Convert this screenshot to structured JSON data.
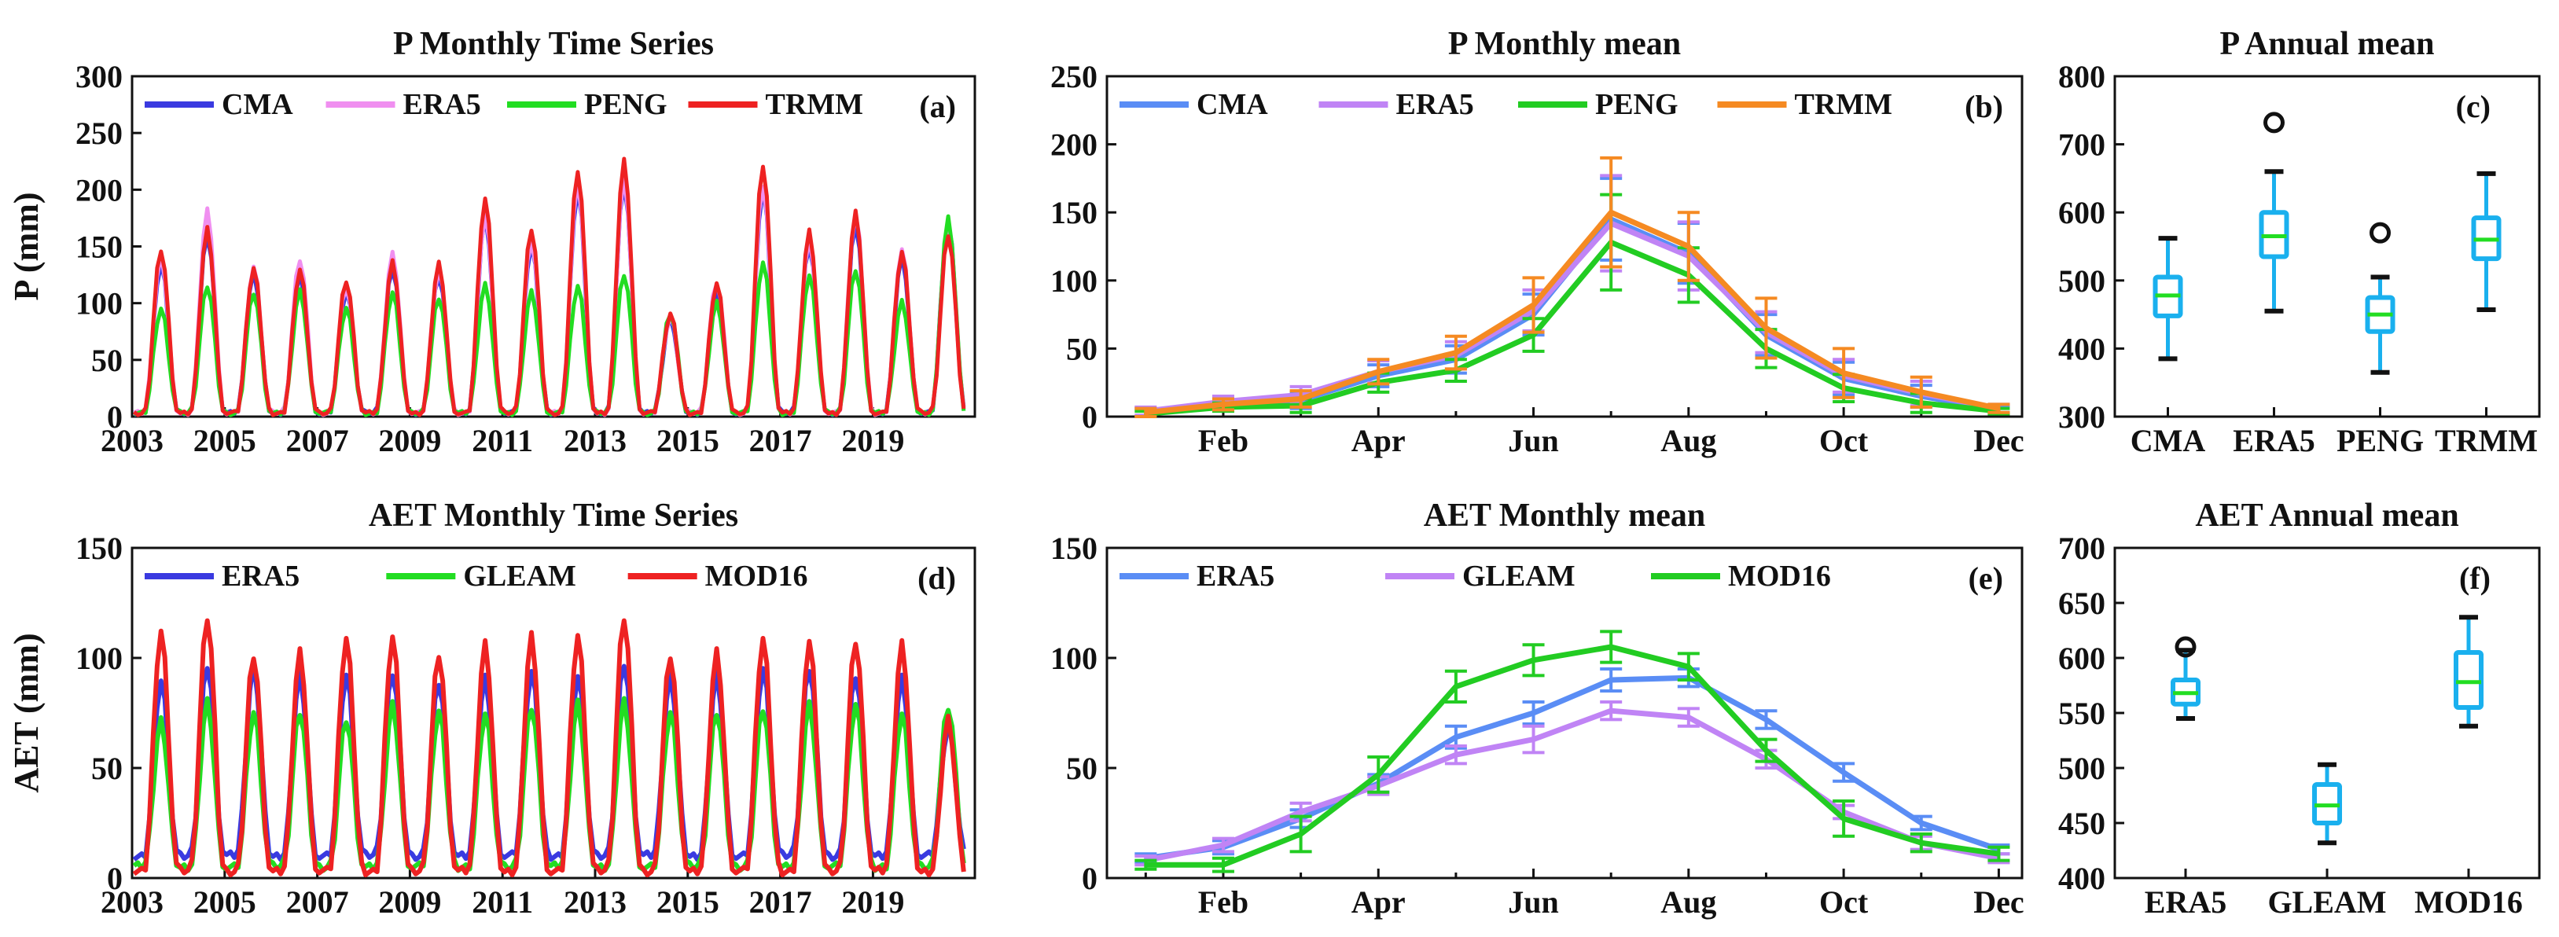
{
  "colors": {
    "CMA": "#3a3ae0",
    "ERA5": "#f08ff0",
    "PENG": "#22dd22",
    "TRMM": "#ee2222",
    "mean_CMA": "#5a8df5",
    "mean_ERA5": "#c084f5",
    "mean_PENG": "#22cc22",
    "mean_TRMM": "#f58a22",
    "aet_ERA5": "#3a3ae0",
    "aet_GLEAM": "#22dd22",
    "aet_MOD16": "#ee2222",
    "aetm_ERA5": "#5a8df5",
    "aetm_GLEAM": "#c084f5",
    "aetm_MOD16": "#22cc22",
    "box": "#1ab0ee",
    "median": "#22dd22",
    "whisker": "#111111"
  },
  "chart_data": [
    {
      "id": "a",
      "type": "line",
      "title": "P Monthly Time Series",
      "panel_label": "(a)",
      "ylabel": "P (mm)",
      "xlabel": "",
      "xlim": [
        2003,
        2021.2
      ],
      "ylim": [
        0,
        300
      ],
      "xticks": [
        "2003",
        "2005",
        "2007",
        "2009",
        "2011",
        "2013",
        "2015",
        "2017",
        "2019"
      ],
      "yticks": [
        "0",
        "50",
        "100",
        "150",
        "200",
        "250",
        "300"
      ],
      "legend": [
        "CMA",
        "ERA5",
        "PENG",
        "TRMM"
      ],
      "seasonal_peaks_by_year": {
        "x": [
          2003,
          2004,
          2005,
          2006,
          2007,
          2008,
          2009,
          2010,
          2011,
          2012,
          2013,
          2014,
          2015,
          2016,
          2017,
          2018,
          2019,
          2020
        ],
        "CMA": [
          135,
          160,
          125,
          125,
          110,
          130,
          125,
          175,
          150,
          200,
          205,
          85,
          110,
          200,
          150,
          170,
          140,
          170
        ],
        "ERA5": [
          140,
          182,
          132,
          138,
          115,
          143,
          128,
          178,
          155,
          205,
          210,
          88,
          118,
          205,
          155,
          178,
          148,
          170
        ],
        "PENG": [
          95,
          115,
          110,
          110,
          95,
          110,
          105,
          115,
          110,
          115,
          125,
          92,
          100,
          135,
          125,
          130,
          100,
          175
        ],
        "TRMM": [
          148,
          165,
          130,
          130,
          120,
          135,
          135,
          192,
          165,
          218,
          225,
          90,
          118,
          222,
          162,
          180,
          145,
          160
        ]
      }
    },
    {
      "id": "b",
      "type": "line",
      "title": "P Monthly mean",
      "panel_label": "(b)",
      "xlim": [
        0.5,
        12.3
      ],
      "ylim": [
        0,
        250
      ],
      "months": [
        1,
        2,
        3,
        4,
        5,
        6,
        7,
        8,
        9,
        10,
        11,
        12
      ],
      "xticks": [
        "Feb",
        "Apr",
        "Jun",
        "Aug",
        "Oct",
        "Dec"
      ],
      "yticks": [
        "0",
        "50",
        "100",
        "150",
        "200",
        "250"
      ],
      "legend": [
        "CMA",
        "ERA5",
        "PENG",
        "TRMM"
      ],
      "series": [
        {
          "name": "CMA",
          "values": [
            3,
            9,
            12,
            30,
            42,
            75,
            145,
            120,
            60,
            28,
            15,
            5
          ],
          "err": [
            3,
            4,
            6,
            8,
            10,
            15,
            30,
            22,
            15,
            12,
            8,
            3
          ]
        },
        {
          "name": "ERA5",
          "values": [
            4,
            11,
            16,
            33,
            45,
            78,
            142,
            118,
            62,
            30,
            17,
            6
          ],
          "err": [
            3,
            4,
            6,
            8,
            10,
            15,
            35,
            25,
            15,
            12,
            9,
            3
          ]
        },
        {
          "name": "PENG",
          "values": [
            2,
            7,
            8,
            25,
            34,
            60,
            128,
            104,
            50,
            21,
            10,
            4
          ],
          "err": [
            2,
            3,
            5,
            7,
            8,
            12,
            35,
            20,
            14,
            10,
            7,
            2
          ]
        },
        {
          "name": "TRMM",
          "values": [
            3,
            9,
            13,
            33,
            47,
            82,
            150,
            125,
            65,
            32,
            18,
            6
          ],
          "err": [
            3,
            4,
            6,
            9,
            12,
            20,
            40,
            25,
            22,
            18,
            11,
            3
          ]
        }
      ]
    },
    {
      "id": "c",
      "type": "box",
      "title": "P Annual mean",
      "panel_label": "(c)",
      "ylim": [
        300,
        800
      ],
      "categories": [
        "CMA",
        "ERA5",
        "PENG",
        "TRMM"
      ],
      "yticks": [
        "300",
        "400",
        "500",
        "600",
        "700",
        "800"
      ],
      "boxes": [
        {
          "min": 385,
          "q1": 448,
          "median": 478,
          "q3": 505,
          "max": 562,
          "outliers": []
        },
        {
          "min": 455,
          "q1": 535,
          "median": 565,
          "q3": 600,
          "max": 660,
          "outliers": [
            732
          ]
        },
        {
          "min": 365,
          "q1": 425,
          "median": 450,
          "q3": 475,
          "max": 505,
          "outliers": [
            570
          ]
        },
        {
          "min": 457,
          "q1": 532,
          "median": 560,
          "q3": 592,
          "max": 657,
          "outliers": []
        }
      ]
    },
    {
      "id": "d",
      "type": "line",
      "title": "AET Monthly Time Series",
      "panel_label": "(d)",
      "ylabel": "AET (mm)",
      "xlim": [
        2003,
        2021.2
      ],
      "ylim": [
        0,
        150
      ],
      "xticks": [
        "2003",
        "2005",
        "2007",
        "2009",
        "2011",
        "2013",
        "2015",
        "2017",
        "2019"
      ],
      "yticks": [
        "0",
        "50",
        "100",
        "150"
      ],
      "legend": [
        "ERA5",
        "GLEAM",
        "MOD16"
      ],
      "seasonal_peaks_by_year": {
        "x": [
          2003,
          2004,
          2005,
          2006,
          2007,
          2008,
          2009,
          2010,
          2011,
          2012,
          2013,
          2014,
          2015,
          2016,
          2017,
          2018,
          2019,
          2020
        ],
        "ERA5": [
          90,
          97,
          95,
          92,
          92,
          93,
          90,
          90,
          93,
          92,
          98,
          90,
          92,
          95,
          95,
          93,
          90,
          68
        ],
        "GLEAM": [
          70,
          80,
          75,
          75,
          73,
          78,
          75,
          75,
          78,
          78,
          80,
          75,
          75,
          78,
          78,
          78,
          75,
          78
        ],
        "MOD16": [
          112,
          118,
          102,
          102,
          108,
          110,
          102,
          105,
          110,
          110,
          118,
          102,
          102,
          108,
          108,
          108,
          105,
          72
        ]
      },
      "troughs_by_year": {
        "ERA5": 10,
        "GLEAM": 5,
        "MOD16": 3
      }
    },
    {
      "id": "e",
      "type": "line",
      "title": "AET Monthly mean",
      "panel_label": "(e)",
      "xlim": [
        0.5,
        12.3
      ],
      "ylim": [
        0,
        150
      ],
      "months": [
        1,
        2,
        3,
        4,
        5,
        6,
        7,
        8,
        9,
        10,
        11,
        12
      ],
      "xticks": [
        "Feb",
        "Apr",
        "Jun",
        "Aug",
        "Oct",
        "Dec"
      ],
      "yticks": [
        "0",
        "50",
        "100",
        "150"
      ],
      "legend": [
        "ERA5",
        "GLEAM",
        "MOD16"
      ],
      "series": [
        {
          "name": "ERA5",
          "values": [
            9,
            14,
            27,
            43,
            64,
            75,
            90,
            91,
            72,
            48,
            25,
            13
          ],
          "err": [
            2,
            3,
            4,
            4,
            5,
            5,
            5,
            4,
            4,
            4,
            3,
            2
          ]
        },
        {
          "name": "GLEAM",
          "values": [
            8,
            15,
            30,
            42,
            56,
            63,
            76,
            73,
            54,
            30,
            16,
            9
          ],
          "err": [
            2,
            3,
            4,
            4,
            4,
            6,
            4,
            4,
            4,
            3,
            3,
            2
          ]
        },
        {
          "name": "MOD16",
          "values": [
            6,
            6,
            20,
            47,
            87,
            99,
            105,
            96,
            58,
            27,
            16,
            11
          ],
          "err": [
            2,
            3,
            8,
            8,
            7,
            7,
            7,
            6,
            5,
            8,
            4,
            3
          ]
        }
      ]
    },
    {
      "id": "f",
      "type": "box",
      "title": "AET Annual mean",
      "panel_label": "(f)",
      "ylim": [
        400,
        700
      ],
      "categories": [
        "ERA5",
        "GLEAM",
        "MOD16"
      ],
      "yticks": [
        "400",
        "450",
        "500",
        "550",
        "600",
        "650",
        "700"
      ],
      "boxes": [
        {
          "min": 545,
          "q1": 558,
          "median": 568,
          "q3": 580,
          "max": 607,
          "outliers": [
            610
          ]
        },
        {
          "min": 432,
          "q1": 450,
          "median": 466,
          "q3": 485,
          "max": 503,
          "outliers": []
        },
        {
          "min": 538,
          "q1": 555,
          "median": 578,
          "q3": 605,
          "max": 637,
          "outliers": []
        }
      ]
    }
  ]
}
